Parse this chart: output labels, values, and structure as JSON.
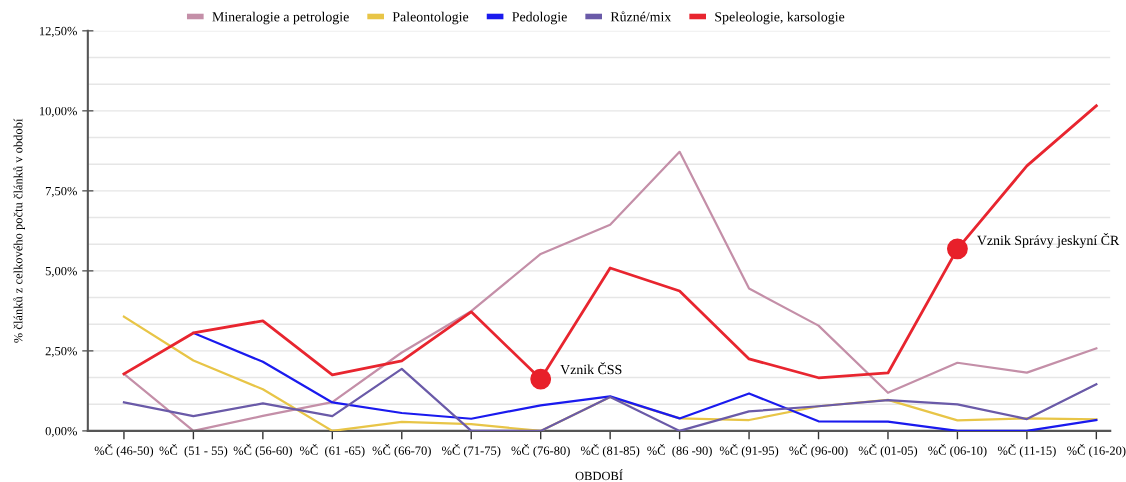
{
  "chart_data": {
    "type": "line",
    "xlabel": "OBDOBÍ",
    "ylabel": "% článků z celkového počtu článků v období",
    "categories": [
      "%Č (46-50)",
      "%Č  (51 - 55)",
      "%Č (56-60)",
      "%Č  (61 -65)",
      "%Č (66-70)",
      "%Č (71-75)",
      "%Č (76-80)",
      "%Č (81-85)",
      "%Č  (86 -90)",
      "%Č (91-95)",
      "%Č (96-00)",
      "%Č (01-05)",
      "%Č (06-10)",
      "%Č (11-15)",
      "%Č (16-20)"
    ],
    "series": [
      {
        "name": "Mineralogie a petrologie",
        "color": "#c48fa8",
        "values": [
          1.78,
          0,
          0.47,
          0.9,
          2.45,
          3.74,
          5.53,
          6.44,
          8.72,
          4.45,
          3.29,
          1.19,
          2.13,
          1.82,
          2.58
        ]
      },
      {
        "name": "Paleontologie",
        "color": "#e8c547",
        "values": [
          3.57,
          2.2,
          1.3,
          0,
          0.28,
          0.21,
          0,
          1.06,
          0.39,
          0.34,
          0.77,
          0.97,
          0.33,
          0.39,
          0.36
        ]
      },
      {
        "name": "Pedologie",
        "color": "#1a1aee",
        "values": [
          null,
          3.06,
          2.16,
          0.89,
          0.56,
          0.38,
          0.8,
          1.08,
          0.39,
          1.17,
          0.3,
          0.29,
          0,
          0,
          0.34
        ]
      },
      {
        "name": "Různé/mix",
        "color": "#6a5aa8",
        "values": [
          0.89,
          0.46,
          0.86,
          0.46,
          1.94,
          0,
          0,
          1.06,
          0,
          0.61,
          0.77,
          0.96,
          0.83,
          0.37,
          1.46
        ]
      },
      {
        "name": "Speleologie, karsologie",
        "color": "#e8252f",
        "values": [
          1.78,
          3.06,
          3.44,
          1.75,
          2.19,
          3.72,
          1.62,
          5.09,
          4.37,
          2.25,
          1.66,
          1.81,
          5.69,
          8.28,
          10.16
        ]
      }
    ],
    "ylim": [
      0,
      12.5
    ],
    "yticks": [
      {
        "value": 0,
        "label": "0,00%"
      },
      {
        "value": 0.8333,
        "label": null
      },
      {
        "value": 1.6667,
        "label": null
      },
      {
        "value": 2.5,
        "label": "2,50%"
      },
      {
        "value": 3.3333,
        "label": null
      },
      {
        "value": 4.1667,
        "label": null
      },
      {
        "value": 5,
        "label": "5,00%"
      },
      {
        "value": 5.8333,
        "label": null
      },
      {
        "value": 6.6667,
        "label": null
      },
      {
        "value": 7.5,
        "label": "7,50%"
      },
      {
        "value": 8.3333,
        "label": null
      },
      {
        "value": 9.1667,
        "label": null
      },
      {
        "value": 10,
        "label": "10,00%"
      },
      {
        "value": 10.8333,
        "label": null
      },
      {
        "value": 11.6667,
        "label": null
      },
      {
        "value": 12.5,
        "label": "12,50%"
      }
    ],
    "annotations": [
      {
        "text": "Vznik ČSS",
        "x": "%Č (76-80)",
        "y": 1.62
      },
      {
        "text": "Vznik Správy jeskyní ČR",
        "x": "%Č (06-10)",
        "y": 5.69
      }
    ],
    "grid": "y",
    "legend": "top",
    "marker": "none",
    "line_style": "solid"
  }
}
